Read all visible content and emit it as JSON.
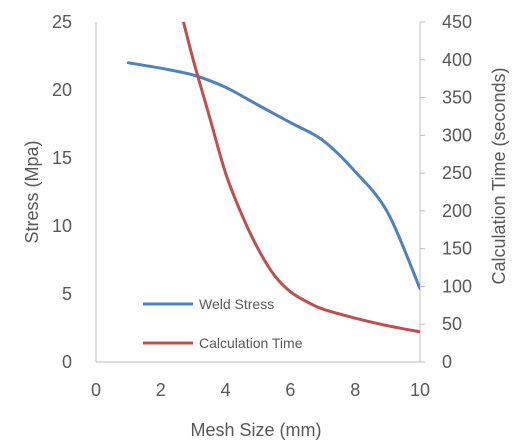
{
  "chart_data": {
    "type": "line",
    "xlabel": "Mesh Size (mm)",
    "ylabel": "Stress (Mpa)",
    "y2label": "Calculation Time (seconds)",
    "xlim": [
      0,
      10
    ],
    "ylim": [
      0,
      25
    ],
    "y2lim": [
      0,
      450
    ],
    "x_ticks": [
      0,
      2,
      4,
      6,
      8,
      10
    ],
    "y_ticks": [
      0,
      5,
      10,
      15,
      20,
      25
    ],
    "y2_ticks": [
      0,
      50,
      100,
      150,
      200,
      250,
      300,
      350,
      400,
      450
    ],
    "grid": false,
    "legend_position": "bottom-left inside plot",
    "series": [
      {
        "name": "Weld Stress",
        "axis": "left",
        "color": "#4F81BD",
        "x": [
          1,
          2,
          3,
          4,
          5,
          6,
          7,
          8,
          9,
          10
        ],
        "y": [
          22.0,
          21.6,
          21.1,
          20.2,
          18.9,
          17.6,
          16.3,
          14.0,
          11.0,
          5.4
        ]
      },
      {
        "name": "Calculation Time",
        "axis": "right",
        "color": "#C0504D",
        "x": [
          2.7,
          3.0,
          3.5,
          4.0,
          4.5,
          5.0,
          5.5,
          6.0,
          6.5,
          7.0,
          8.0,
          9.0,
          10.0
        ],
        "y": [
          450,
          400,
          325,
          250,
          195,
          150,
          115,
          93,
          80,
          70,
          58,
          48,
          40
        ]
      }
    ]
  }
}
